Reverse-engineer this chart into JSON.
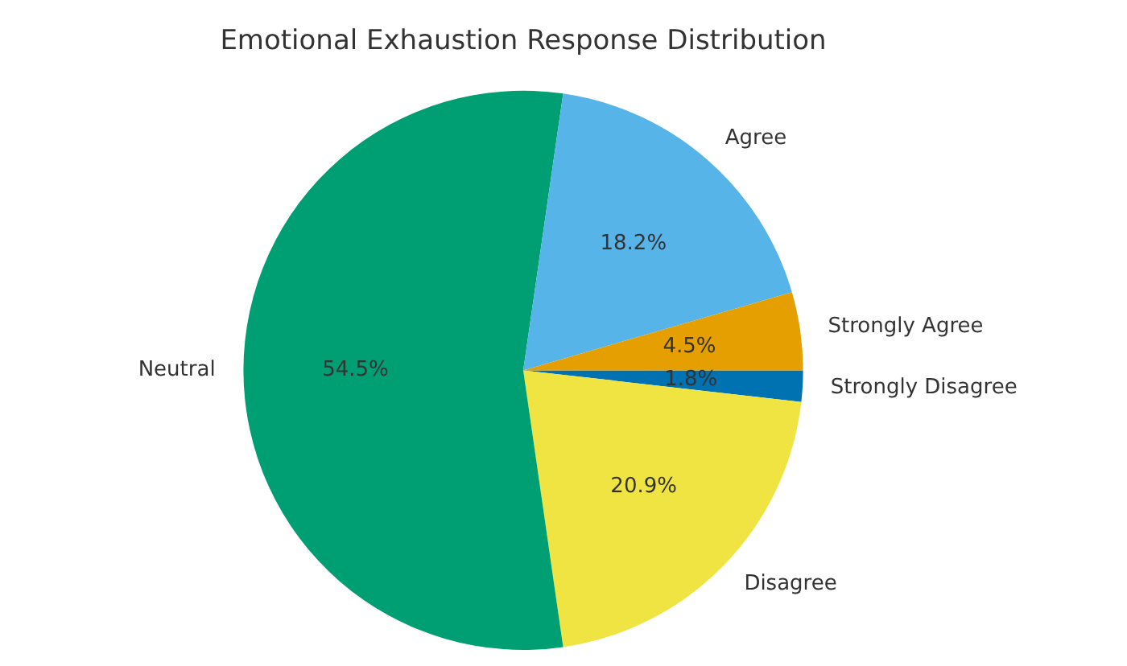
{
  "chart_data": {
    "type": "pie",
    "title": "Emotional Exhaustion Response Distribution",
    "categories": [
      "Strongly Disagree",
      "Disagree",
      "Neutral",
      "Agree",
      "Strongly Agree"
    ],
    "values": [
      1.8,
      20.9,
      54.5,
      18.2,
      4.5
    ],
    "colors": [
      "#0072b2",
      "#f0e442",
      "#009e73",
      "#56b4e9",
      "#e69f00"
    ],
    "value_labels": [
      "1.8%",
      "20.9%",
      "54.5%",
      "18.2%",
      "4.5%"
    ],
    "legend": false
  }
}
